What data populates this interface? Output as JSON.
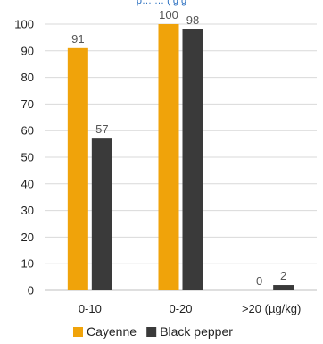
{
  "chart_data": {
    "type": "bar",
    "title_fragment": "p… … ( g g",
    "categories": [
      "0-10",
      "0-20",
      ">20  (µg/kg)"
    ],
    "series": [
      {
        "name": "Cayenne",
        "values": [
          91,
          100,
          0
        ],
        "color": "#F0A30A"
      },
      {
        "name": "Black pepper",
        "values": [
          57,
          98,
          2
        ],
        "color": "#3A3A3A"
      }
    ],
    "ylim": [
      0,
      100
    ],
    "yticks": [
      0,
      10,
      20,
      30,
      40,
      50,
      60,
      70,
      80,
      90,
      100
    ],
    "grid": true,
    "legend": "bottom"
  }
}
